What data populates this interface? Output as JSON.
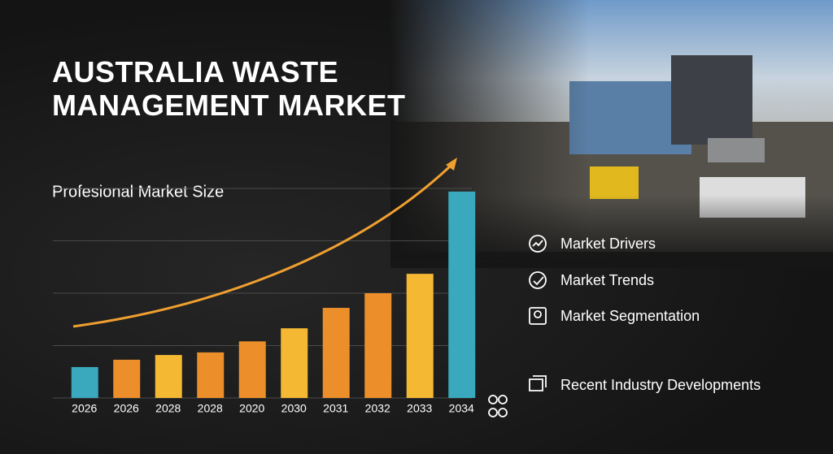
{
  "title": "AUSTRALIA WASTE MANAGEMENT MARKET",
  "features": [
    "Market Drivers",
    "Market Trends",
    "Market Segmentation",
    "Recent Industry Developments"
  ],
  "chart_data": {
    "type": "bar",
    "title": "Profesional Market Size",
    "categories": [
      "2026",
      "2026",
      "2028",
      "2028",
      "2020",
      "2030",
      "2031",
      "2032",
      "2033",
      "2034"
    ],
    "values": [
      0.59,
      0.73,
      0.82,
      0.87,
      1.08,
      1.33,
      1.72,
      2.0,
      2.37,
      3.94
    ],
    "colors": [
      "#3aa8bd",
      "#ec8f2a",
      "#f4b833",
      "#ec8f2a",
      "#ec8f2a",
      "#f4b833",
      "#ec8f2a",
      "#ec8f2a",
      "#f4b833",
      "#3aa8bd"
    ],
    "ylim": [
      0,
      4
    ],
    "grid": true
  }
}
